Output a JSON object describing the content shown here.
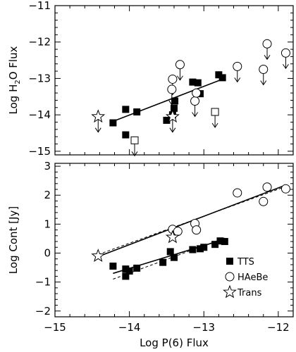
{
  "chart_data": [
    {
      "type": "scatter",
      "title": "",
      "xlabel": "",
      "ylabel_parts": [
        "Log H",
        "2",
        "O Flux"
      ],
      "xlim": [
        -15,
        -11.8
      ],
      "ylim": [
        -15.1,
        -11
      ],
      "x_ticks": [],
      "y_ticks": [
        -15,
        -14,
        -13,
        -12,
        -11
      ],
      "y_tick_labels": [
        "−15",
        "−14",
        "−13",
        "−12",
        "−11"
      ],
      "series": [
        {
          "kind": "TTS",
          "marker": "filled-square",
          "points": [
            {
              "x": -14.22,
              "y": -14.22
            },
            {
              "x": -14.05,
              "y": -13.85
            },
            {
              "x": -14.05,
              "y": -14.55
            },
            {
              "x": -13.9,
              "y": -13.92
            },
            {
              "x": -13.5,
              "y": -14.15
            },
            {
              "x": -13.42,
              "y": -14.0
            },
            {
              "x": -13.4,
              "y": -13.82
            },
            {
              "x": -13.39,
              "y": -13.62
            },
            {
              "x": -13.15,
              "y": -13.1
            },
            {
              "x": -13.08,
              "y": -13.12
            },
            {
              "x": -13.05,
              "y": -13.42
            },
            {
              "x": -12.8,
              "y": -12.9
            },
            {
              "x": -12.75,
              "y": -12.98
            }
          ]
        },
        {
          "kind": "TTS-limit",
          "marker": "open-square",
          "points": [
            {
              "x": -13.93,
              "y": -14.7
            },
            {
              "x": -12.85,
              "y": -13.92
            }
          ]
        },
        {
          "kind": "HAeBe",
          "marker": "open-circle",
          "points": [
            {
              "x": -13.32,
              "y": -12.62
            },
            {
              "x": -13.42,
              "y": -13.02
            },
            {
              "x": -13.43,
              "y": -13.3
            },
            {
              "x": -13.12,
              "y": -13.62
            },
            {
              "x": -13.1,
              "y": -13.4
            },
            {
              "x": -12.55,
              "y": -12.67
            },
            {
              "x": -12.2,
              "y": -12.75
            },
            {
              "x": -12.15,
              "y": -12.05
            },
            {
              "x": -11.9,
              "y": -12.3
            }
          ]
        },
        {
          "kind": "Trans",
          "marker": "open-star",
          "points": [
            {
              "x": -14.42,
              "y": -14.05
            },
            {
              "x": -13.42,
              "y": -14.05
            }
          ]
        }
      ],
      "upper_limit_arrows": [
        {
          "x": -14.42,
          "y": -14.05
        },
        {
          "x": -13.93,
          "y": -14.7
        },
        {
          "x": -13.42,
          "y": -14.05
        },
        {
          "x": -13.42,
          "y": -13.02
        },
        {
          "x": -13.43,
          "y": -13.3
        },
        {
          "x": -13.12,
          "y": -13.62
        },
        {
          "x": -13.32,
          "y": -12.62
        },
        {
          "x": -12.85,
          "y": -13.92
        },
        {
          "x": -12.55,
          "y": -12.67
        },
        {
          "x": -12.2,
          "y": -12.75
        },
        {
          "x": -12.15,
          "y": -12.05
        },
        {
          "x": -11.9,
          "y": -12.3
        }
      ],
      "fit_lines": [
        {
          "style": "solid",
          "from": {
            "x": -14.22,
            "y": -14.18
          },
          "to": {
            "x": -12.75,
            "y": -13.02
          }
        }
      ]
    },
    {
      "type": "scatter",
      "title": "",
      "xlabel": "Log P(6) Flux",
      "ylabel": "Log Cont [Jy]",
      "xlim": [
        -15,
        -11.8
      ],
      "ylim": [
        -2.2,
        3.1
      ],
      "x_ticks": [
        -15,
        -14,
        -13,
        -12
      ],
      "x_tick_labels": [
        "−15",
        "−14",
        "−13",
        "−12"
      ],
      "y_ticks": [
        -2,
        -1,
        0,
        1,
        2,
        3
      ],
      "y_tick_labels": [
        "−2",
        "−1",
        "0",
        "1",
        "2",
        "3"
      ],
      "series": [
        {
          "kind": "TTS",
          "marker": "filled-square",
          "points": [
            {
              "x": -14.22,
              "y": -0.45
            },
            {
              "x": -14.05,
              "y": -0.55
            },
            {
              "x": -14.05,
              "y": -0.8
            },
            {
              "x": -14.0,
              "y": -0.62
            },
            {
              "x": -13.9,
              "y": -0.52
            },
            {
              "x": -13.55,
              "y": -0.32
            },
            {
              "x": -13.45,
              "y": 0.05
            },
            {
              "x": -13.4,
              "y": -0.15
            },
            {
              "x": -13.15,
              "y": 0.12
            },
            {
              "x": -13.05,
              "y": 0.15
            },
            {
              "x": -13.0,
              "y": 0.2
            },
            {
              "x": -12.85,
              "y": 0.3
            },
            {
              "x": -12.78,
              "y": 0.42
            },
            {
              "x": -12.72,
              "y": 0.4
            }
          ]
        },
        {
          "kind": "HAeBe",
          "marker": "open-circle",
          "points": [
            {
              "x": -13.42,
              "y": 0.82
            },
            {
              "x": -13.35,
              "y": 0.75
            },
            {
              "x": -13.12,
              "y": 1.02
            },
            {
              "x": -13.1,
              "y": 0.8
            },
            {
              "x": -12.55,
              "y": 2.08
            },
            {
              "x": -12.2,
              "y": 1.78
            },
            {
              "x": -12.15,
              "y": 2.28
            },
            {
              "x": -11.9,
              "y": 2.22
            }
          ]
        },
        {
          "kind": "Trans",
          "marker": "open-star",
          "points": [
            {
              "x": -14.42,
              "y": -0.1
            },
            {
              "x": -13.42,
              "y": 0.55
            }
          ]
        }
      ],
      "fit_lines": [
        {
          "style": "solid",
          "from": {
            "x": -14.42,
            "y": -0.12
          },
          "to": {
            "x": -11.9,
            "y": 2.35
          }
        },
        {
          "style": "dashed",
          "from": {
            "x": -14.42,
            "y": -0.05
          },
          "to": {
            "x": -11.9,
            "y": 2.3
          }
        },
        {
          "style": "solid",
          "from": {
            "x": -14.22,
            "y": -0.7
          },
          "to": {
            "x": -12.72,
            "y": 0.48
          }
        },
        {
          "style": "dashed",
          "from": {
            "x": -14.22,
            "y": -0.9
          },
          "to": {
            "x": -12.72,
            "y": 0.52
          }
        }
      ],
      "legend": {
        "placement": "bottom-right",
        "entries": [
          {
            "marker": "filled-square",
            "label": "TTS"
          },
          {
            "marker": "open-circle",
            "label": "HAeBe"
          },
          {
            "marker": "open-star",
            "label": "Trans"
          }
        ]
      }
    }
  ]
}
